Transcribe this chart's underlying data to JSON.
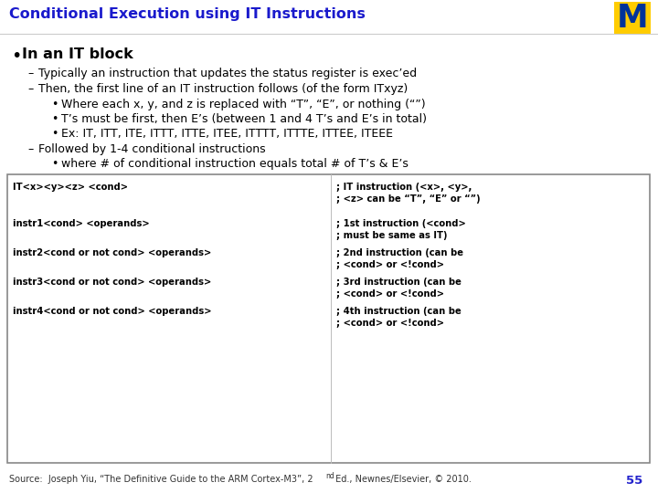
{
  "title": "Conditional Execution using IT Instructions",
  "title_color": "#1a1acc",
  "title_fontsize": 11.5,
  "bg_color": "#ffffff",
  "bullet1": "In an IT block",
  "bullet1_fontsize": 11.5,
  "dash1": "Typically an instruction that updates the status register is exec’ed",
  "dash2": "Then, the first line of an IT instruction follows (of the form ITxyz)",
  "sub1": "Where each x, y, and z is replaced with “T”, “E”, or nothing (“”)",
  "sub2": "T’s must be first, then E’s (between 1 and 4 T’s and E’s in total)",
  "sub3": "Ex: IT, ITT, ITE, ITTT, ITTE, ITEE, ITTTT, ITTTE, ITTEE, ITEEE",
  "dash3": "Followed by 1-4 conditional instructions",
  "sub4": "where # of conditional instruction equals total # of T’s & E’s",
  "code_left": [
    "IT<x><y><z> <cond>",
    "instr1<cond> <operands>",
    "instr2<cond or not cond> <operands>",
    "instr3<cond or not cond> <operands>",
    "instr4<cond or not cond> <operands>"
  ],
  "code_right_pairs": [
    [
      "; IT instruction (<x>, <y>,",
      "; <z> can be “T”, “E” or “”)"
    ],
    [
      "; 1st instruction (<cond>",
      "; must be same as IT)"
    ],
    [
      "; 2nd instruction (can be",
      "; <cond> or <!cond>"
    ],
    [
      "; 3rd instruction (can be",
      "; <cond> or <!cond>"
    ],
    [
      "; 4th instruction (can be",
      "; <cond> or <!cond>"
    ]
  ],
  "footer": "Source:  Joseph Yiu, “The Definitive Guide to the ARM Cortex-M3”, 2",
  "footer_super": "nd",
  "footer_end": " Ed., Newnes/Elsevier, © 2010.",
  "page_num": "55",
  "text_color": "#000000",
  "code_fontsize": 7.2,
  "body_fontsize": 9.0,
  "footer_fontsize": 7.0,
  "logo_bg": "#FFCC00",
  "logo_fg": "#003399",
  "box_bg": "#ffffff",
  "box_border": "#888888",
  "title_line_color": "#cccccc"
}
